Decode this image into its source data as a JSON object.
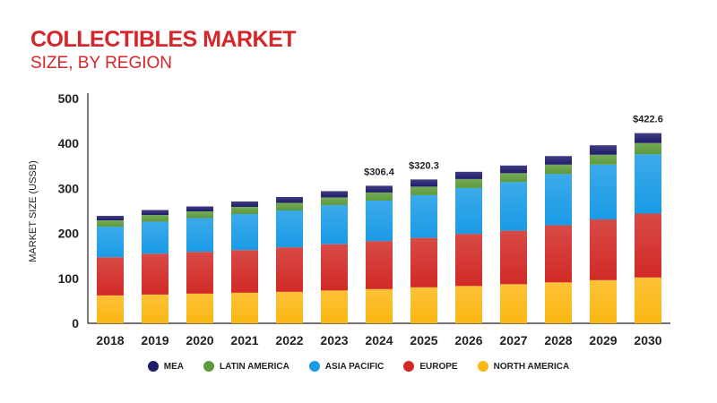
{
  "title": "COLLECTIBLES MARKET",
  "subtitle": "SIZE, BY REGION",
  "colors": {
    "title": "#d6262b",
    "mea": "#1f1c6b",
    "latin_america": "#5c9a3b",
    "asia_pacific": "#1a9be6",
    "europe": "#d12a26",
    "north_america": "#fbb713",
    "axis": "#222222"
  },
  "chart_data": {
    "type": "bar",
    "stacked": true,
    "title": "COLLECTIBLES MARKET",
    "subtitle": "SIZE, BY REGION",
    "xlabel": "",
    "ylabel": "MARKET SIZE (USSB)",
    "ylim": [
      0,
      500
    ],
    "yticks": [
      0,
      100,
      200,
      300,
      400,
      500
    ],
    "categories": [
      "2018",
      "2019",
      "2020",
      "2021",
      "2022",
      "2023",
      "2024",
      "2025",
      "2026",
      "2027",
      "2028",
      "2029",
      "2030"
    ],
    "series": [
      {
        "name": "NORTH AMERICA",
        "key": "north_america",
        "values": [
          62,
          64,
          66,
          68,
          70,
          73,
          76,
          80,
          83,
          87,
          91,
          96,
          102
        ]
      },
      {
        "name": "EUROPE",
        "key": "europe",
        "values": [
          85,
          91,
          93,
          95,
          99,
          103,
          107,
          110,
          116,
          119,
          127,
          135,
          142
        ]
      },
      {
        "name": "ASIA PACIFIC",
        "key": "asia_pacific",
        "values": [
          68,
          71,
          75,
          80,
          82,
          87,
          90,
          95,
          102,
          108,
          114,
          122,
          132
        ]
      },
      {
        "name": "LATIN AMERICA",
        "key": "latin_america",
        "values": [
          14,
          15,
          15,
          16,
          17,
          17,
          18,
          19,
          20,
          20,
          21,
          22,
          25
        ]
      },
      {
        "name": "MEA",
        "key": "mea",
        "values": [
          10,
          11,
          11,
          12,
          13,
          14,
          15,
          16,
          16,
          17,
          19,
          21,
          22
        ]
      }
    ],
    "annotations": [
      {
        "category": "2024",
        "label": "$306.4"
      },
      {
        "category": "2025",
        "label": "$320.3"
      },
      {
        "category": "2030",
        "label": "$422.6"
      }
    ]
  },
  "legend": [
    {
      "label": "MEA",
      "key": "mea"
    },
    {
      "label": "LATIN AMERICA",
      "key": "latin_america"
    },
    {
      "label": "ASIA PACIFIC",
      "key": "asia_pacific"
    },
    {
      "label": "EUROPE",
      "key": "europe"
    },
    {
      "label": "NORTH AMERICA",
      "key": "north_america"
    }
  ]
}
